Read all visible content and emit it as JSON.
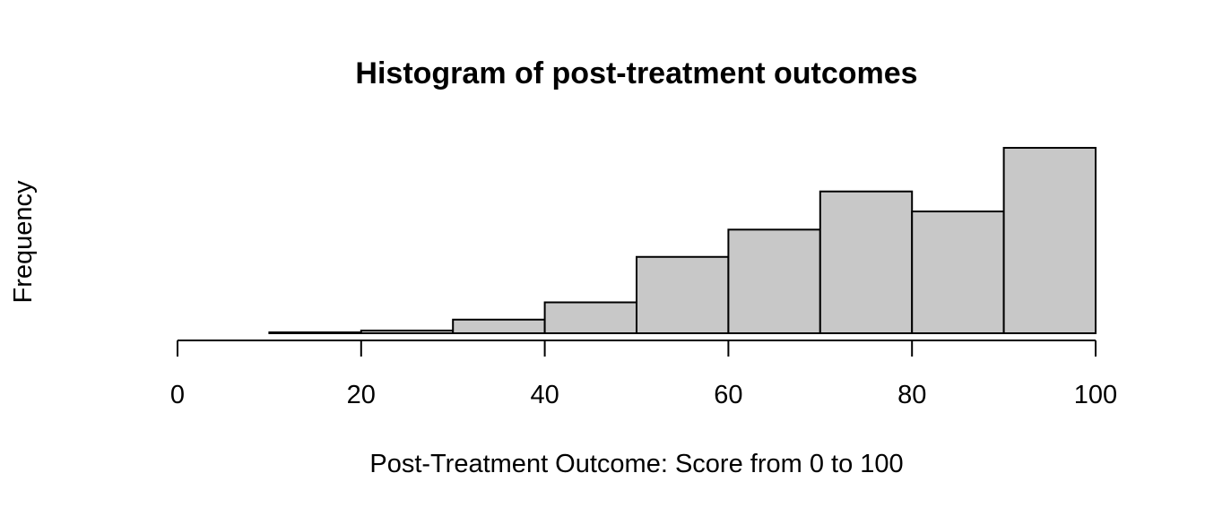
{
  "chart_data": {
    "type": "bar",
    "title": "Histogram of post-treatment outcomes",
    "xlabel": "Post-Treatment Outcome: Score from 0 to 100",
    "ylabel": "Frequency",
    "bins": [
      {
        "from": 0,
        "to": 10,
        "count": 0
      },
      {
        "from": 10,
        "to": 20,
        "count": 0.5
      },
      {
        "from": 20,
        "to": 30,
        "count": 1.5
      },
      {
        "from": 30,
        "to": 40,
        "count": 7.5
      },
      {
        "from": 40,
        "to": 50,
        "count": 17
      },
      {
        "from": 50,
        "to": 60,
        "count": 42
      },
      {
        "from": 60,
        "to": 70,
        "count": 57
      },
      {
        "from": 70,
        "to": 80,
        "count": 78
      },
      {
        "from": 80,
        "to": 90,
        "count": 67
      },
      {
        "from": 90,
        "to": 100,
        "count": 102
      }
    ],
    "xlim": [
      0,
      100
    ],
    "ylim": [
      0,
      102
    ],
    "x_ticks": [
      "0",
      "20",
      "40",
      "60",
      "80",
      "100"
    ],
    "y_axis_shown": false,
    "grid": false,
    "bar_color": "#c8c8c8",
    "edge_color": "#000000"
  }
}
